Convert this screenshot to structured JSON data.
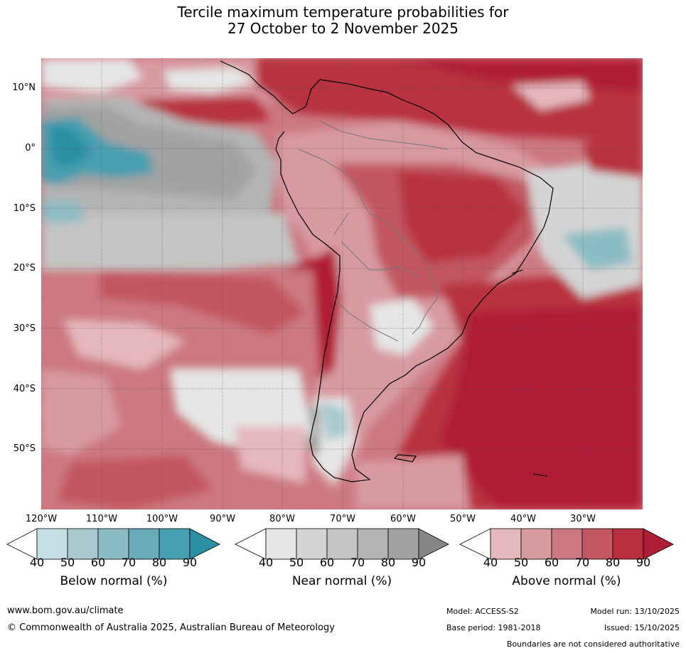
{
  "title": {
    "line1": "Tercile maximum temperature probabilities for",
    "line2": "27 October to 2 November 2025"
  },
  "map": {
    "region": "South America",
    "lat_labels": [
      "10°N",
      "0°",
      "10°S",
      "20°S",
      "30°S",
      "40°S",
      "50°S"
    ],
    "lon_labels": [
      "120°W",
      "110°W",
      "100°W",
      "90°W",
      "80°W",
      "70°W",
      "60°W",
      "50°W",
      "40°W",
      "30°W"
    ]
  },
  "legends": [
    {
      "name": "Below normal (%)",
      "ticks": [
        "40",
        "50",
        "60",
        "70",
        "80",
        "90"
      ],
      "colors": [
        "#ffffff",
        "#c6dfe5",
        "#a8c9d0",
        "#8bbcc3",
        "#69abb8",
        "#469fb0",
        "#2a8fa3"
      ]
    },
    {
      "name": "Near normal (%)",
      "ticks": [
        "40",
        "50",
        "60",
        "70",
        "80",
        "90"
      ],
      "colors": [
        "#ffffff",
        "#e6e6e6",
        "#d4d4d4",
        "#c4c4c4",
        "#b4b4b4",
        "#a2a2a2",
        "#858585"
      ]
    },
    {
      "name": "Above normal (%)",
      "ticks": [
        "40",
        "50",
        "60",
        "70",
        "80",
        "90"
      ],
      "colors": [
        "#ffffff",
        "#e5b8bd",
        "#d89aa1",
        "#cd7880",
        "#c25761",
        "#b8303f",
        "#b01c36"
      ]
    }
  ],
  "footer": {
    "url": "www.bom.gov.au/climate",
    "copyright": "© Commonwealth of Australia 2025, Australian Bureau of Meteorology",
    "model": "Model: ACCESS-S2",
    "base_period": "Base period: 1981-2018",
    "model_run": "Model run: 13/10/2025",
    "issued": "Issued: 15/10/2025",
    "disclaimer": "Boundaries are not considered authoritative"
  }
}
